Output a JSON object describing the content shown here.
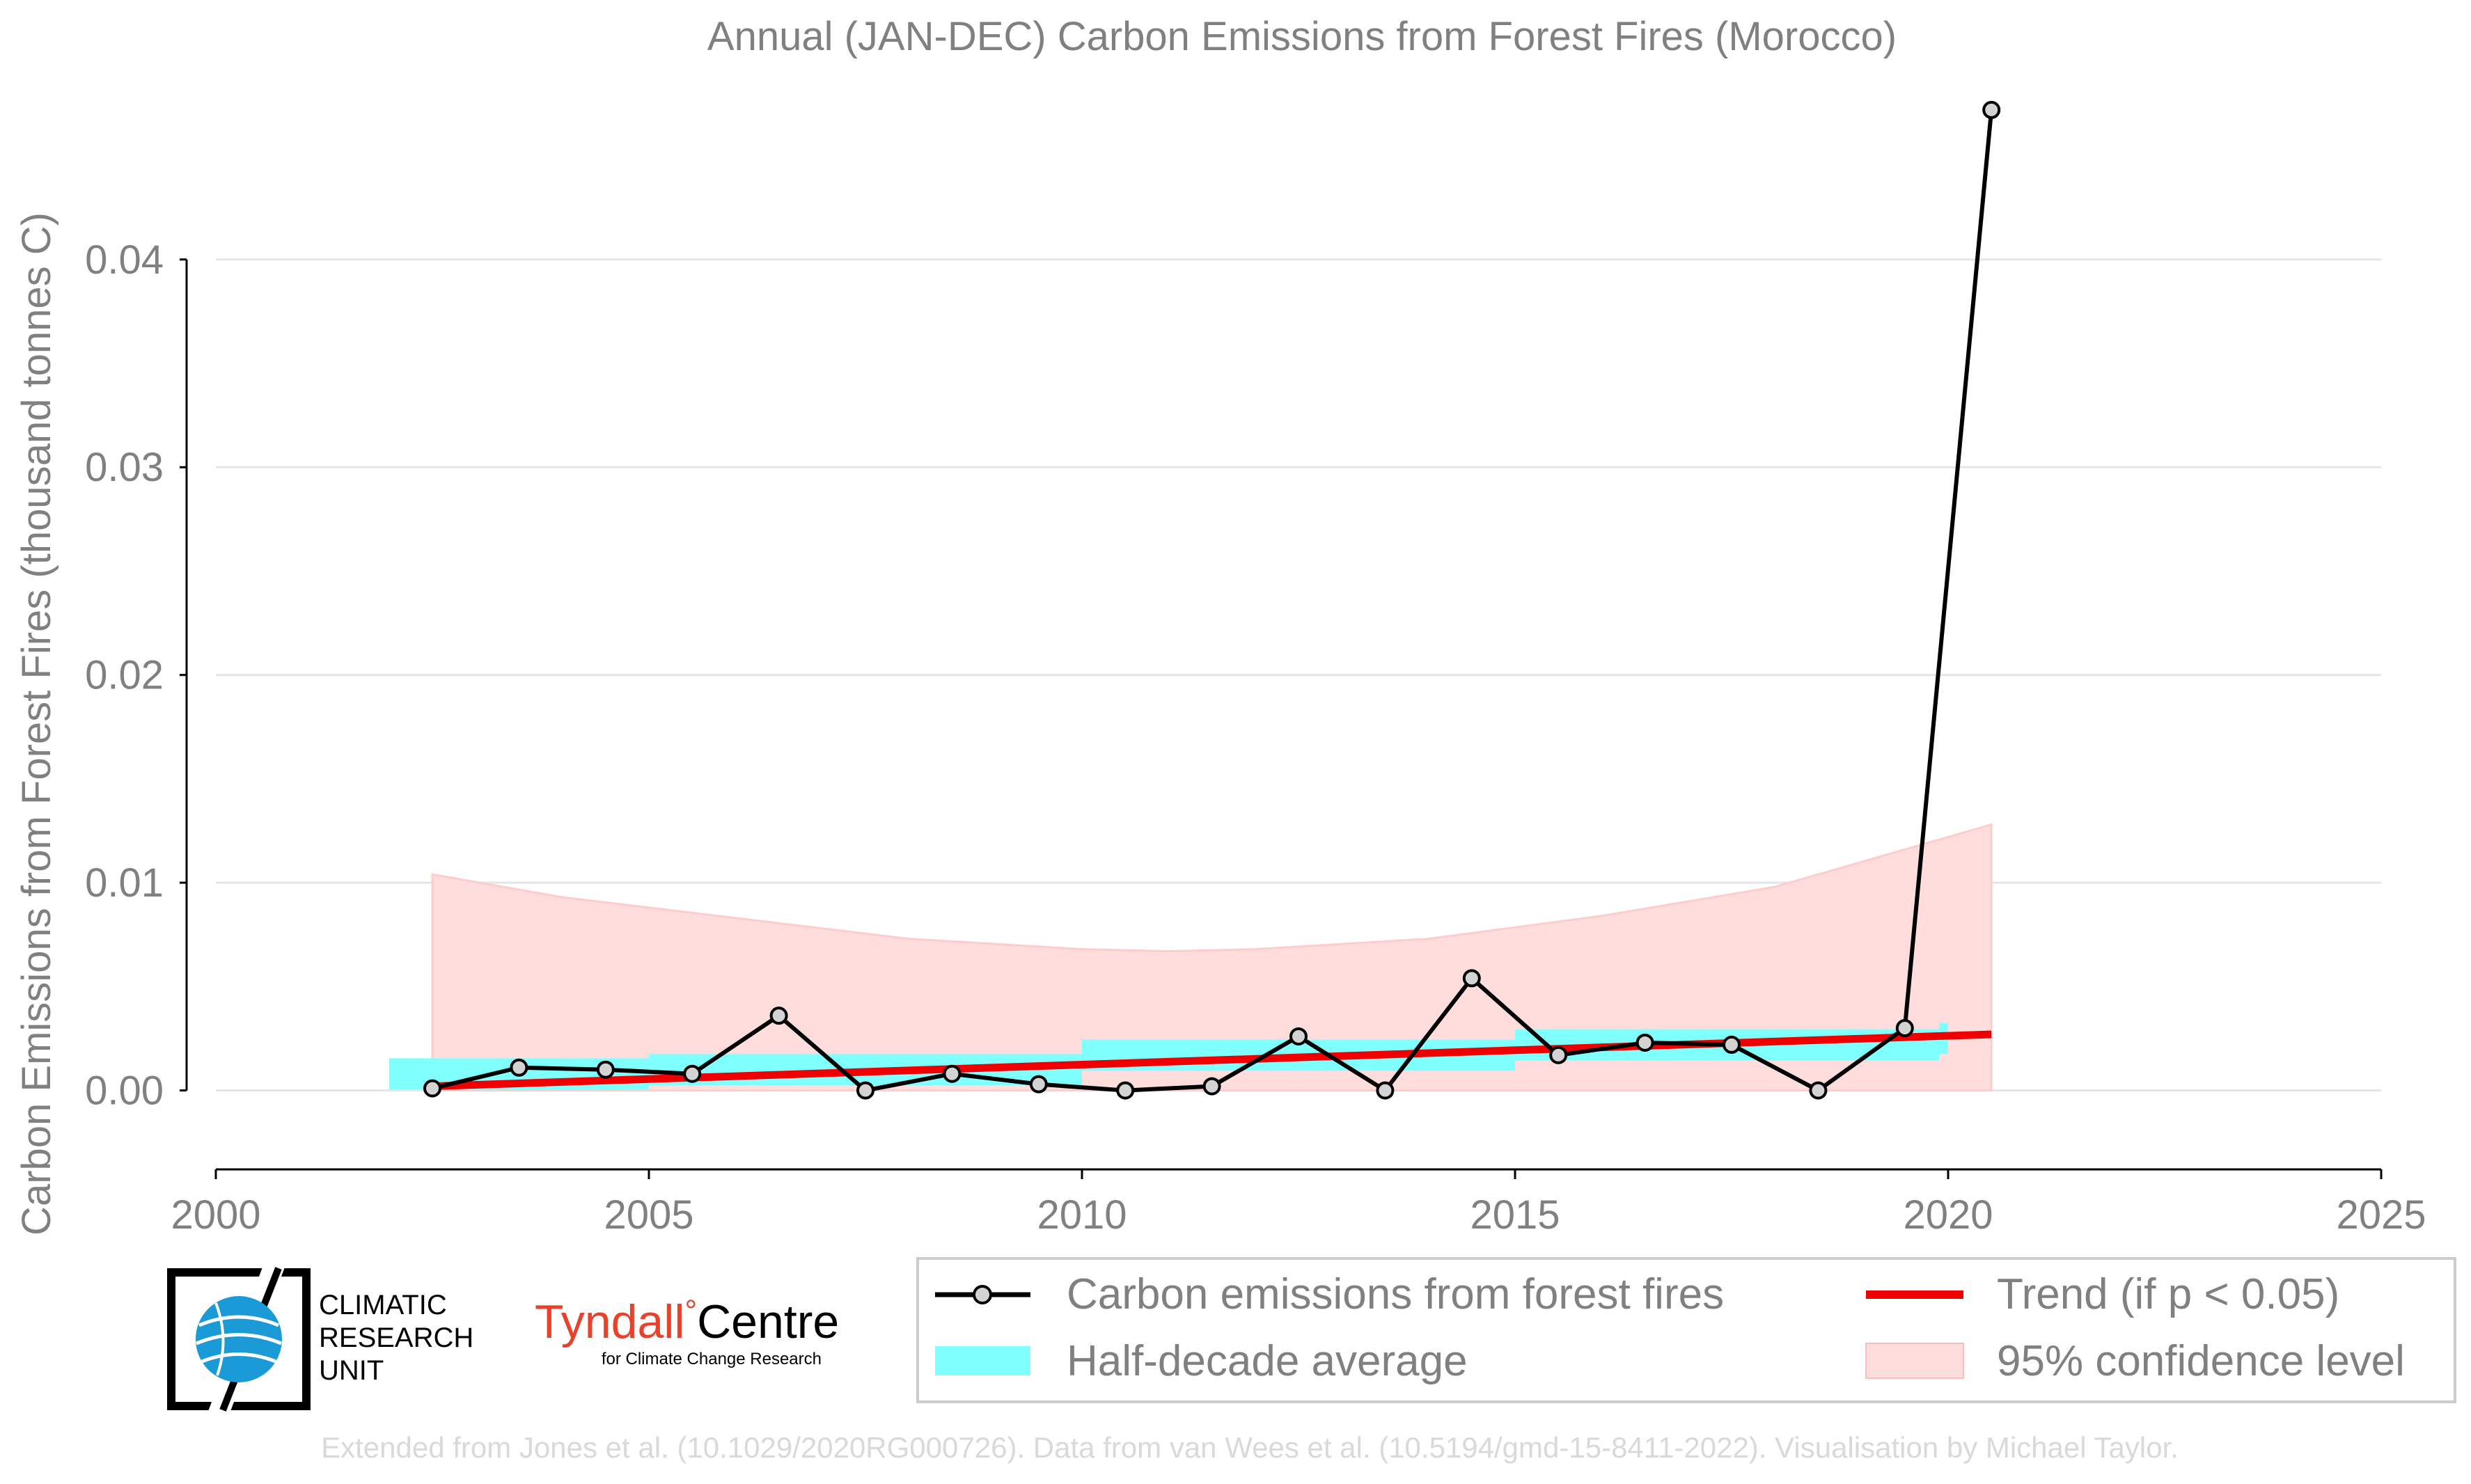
{
  "chart_data": {
    "type": "line",
    "title": "Annual (JAN-DEC) Carbon Emissions from Forest Fires (Morocco)",
    "ylabel": "Carbon Emissions from Forest Fires (thousand tonnes C)",
    "xlabel": "",
    "xlim": [
      2000,
      2025
    ],
    "ylim": [
      -0.0038,
      0.0478
    ],
    "x_ticks": [
      2000,
      2005,
      2010,
      2015,
      2020,
      2025
    ],
    "x_tick_labels": [
      "2000",
      "2005",
      "2010",
      "2015",
      "2020",
      "2025"
    ],
    "y_ticks": [
      0,
      0.01,
      0.02,
      0.03,
      0.04
    ],
    "y_tick_labels": [
      "0.00",
      "0.01",
      "0.02",
      "0.03",
      "0.04"
    ],
    "grid": "horizontal",
    "legend_position": "bottom-right",
    "series": [
      {
        "name": "Carbon emissions from forest fires",
        "kind": "line-markers",
        "color": "#000000",
        "marker_fill": "#d3d3d3",
        "x": [
          2002.5,
          2003.5,
          2004.5,
          2005.5,
          2006.5,
          2007.5,
          2008.5,
          2009.5,
          2010.5,
          2011.5,
          2012.5,
          2013.5,
          2014.5,
          2015.5,
          2016.5,
          2017.5,
          2018.5,
          2019.5,
          2020.5
        ],
        "values": [
          0.0001,
          0.0011,
          0.001,
          0.0008,
          0.0036,
          0.0,
          0.0008,
          0.0003,
          0.0,
          0.0002,
          0.0026,
          0.0,
          0.0054,
          0.0017,
          0.0023,
          0.0022,
          0.0,
          0.003,
          0.0472
        ]
      },
      {
        "name": "Half-decade average",
        "kind": "bars",
        "color": "#80ffff",
        "x_start": [
          2002,
          2005,
          2010,
          2015,
          2019.9
        ],
        "x_end": [
          2005,
          2010,
          2015,
          2019.9,
          2020
        ],
        "center": [
          0.0008,
          0.001,
          0.0017,
          0.0022,
          0.0025
        ],
        "half_height": [
          0.00075,
          0.00075,
          0.00075,
          0.00075,
          0.00075
        ]
      },
      {
        "name": "Trend (if p < 0.05)",
        "kind": "line",
        "color": "#ee0000",
        "x": [
          2002.5,
          2020.5
        ],
        "values": [
          0.0002,
          0.0027
        ]
      },
      {
        "name": "95% confidence level",
        "kind": "band",
        "color": "#ffdddd",
        "x": [
          2002.5,
          2004,
          2006,
          2008,
          2010,
          2011,
          2012,
          2014,
          2016,
          2018,
          2020.5
        ],
        "lower": [
          0,
          0,
          0,
          0,
          0,
          0,
          0,
          0,
          0,
          0,
          0
        ],
        "upper": [
          0.0104,
          0.0093,
          0.0083,
          0.0073,
          0.0068,
          0.0067,
          0.0068,
          0.0073,
          0.0084,
          0.0098,
          0.0128
        ]
      }
    ],
    "legend": [
      {
        "label": "Carbon emissions from forest fires",
        "symbol": "line-marker",
        "color": "#000000"
      },
      {
        "label": "Trend (if p < 0.05)",
        "symbol": "line",
        "color": "#ee0000"
      },
      {
        "label": "Half-decade average",
        "symbol": "patch",
        "color": "#80ffff"
      },
      {
        "label": "95% confidence level",
        "symbol": "patch",
        "color": "#ffdddd"
      }
    ]
  },
  "logos": {
    "cru": {
      "line1": "CLIMATIC",
      "line2": "RESEARCH",
      "line3": "UNIT",
      "icon": "globe-icon",
      "globe_color": "#1a9ad6"
    },
    "tyndall": {
      "name_part1": "Tyndall",
      "degree": "°",
      "name_part2": "Centre",
      "subtitle": "for Climate Change Research",
      "color": "#e8412c"
    }
  },
  "footer": {
    "credit": "Extended from Jones et al. (10.1029/2020RG000726). Data from van Wees et al. (10.5194/gmd-15-8411-2022). Visualisation by Michael Taylor."
  },
  "colors": {
    "text": "#808080",
    "axis": "#000000",
    "grid": "#e5e5e5",
    "footer": "#d9d9d9"
  }
}
